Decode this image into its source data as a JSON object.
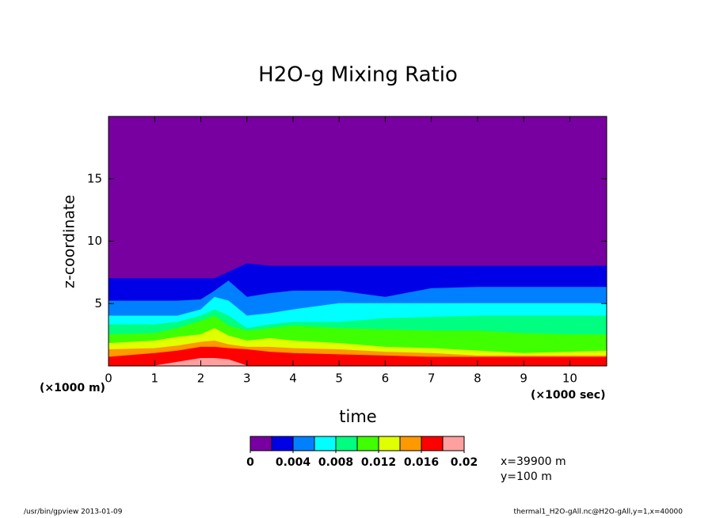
{
  "chart_data": {
    "type": "contour",
    "title": "H2O-g Mixing Ratio",
    "x_label": "time",
    "y_label": "z-coordinate",
    "x_unit": "(×1000 sec)",
    "y_unit": "(×1000 m)",
    "xlim": [
      0,
      10.8
    ],
    "ylim": [
      0,
      20
    ],
    "xticks": [
      0,
      1,
      2,
      3,
      4,
      5,
      6,
      7,
      8,
      9,
      10
    ],
    "yticks": [
      5,
      10,
      15
    ],
    "background_color": "#7800a0",
    "x": [
      0,
      1,
      1.5,
      2,
      2.3,
      2.6,
      3,
      3.5,
      4,
      5,
      6,
      7,
      8,
      9,
      10,
      10.8
    ],
    "series": [
      {
        "color": "#0000e6",
        "values": [
          7,
          7,
          7,
          7,
          7,
          7.5,
          8.2,
          8,
          8,
          8,
          8,
          8,
          8,
          8,
          8,
          8
        ]
      },
      {
        "color": "#0080ff",
        "values": [
          5.2,
          5.2,
          5.2,
          5.3,
          6,
          6.8,
          5.5,
          5.8,
          6,
          6,
          5.5,
          6.2,
          6.3,
          6.3,
          6.3,
          6.3
        ]
      },
      {
        "color": "#00ffff",
        "values": [
          4,
          4,
          4,
          4.5,
          5.5,
          5.2,
          4,
          4.2,
          4.5,
          5,
          5,
          5,
          5,
          5,
          5,
          5
        ]
      },
      {
        "color": "#00ff80",
        "values": [
          3.3,
          3.3,
          3.5,
          4,
          4.5,
          4,
          3,
          3.3,
          3.5,
          3.5,
          3.8,
          3.9,
          4,
          4,
          4,
          4
        ]
      },
      {
        "color": "#40ff00",
        "values": [
          2.5,
          2.6,
          3,
          3.6,
          4,
          3.2,
          2.8,
          3,
          3.2,
          3,
          2.9,
          2.8,
          2.8,
          2.6,
          2.5,
          2.5
        ]
      },
      {
        "color": "#e0ff00",
        "values": [
          1.8,
          2,
          2.3,
          2.5,
          3,
          2.4,
          2,
          2.2,
          2,
          1.8,
          1.5,
          1.4,
          1.2,
          1,
          1.1,
          1.2
        ]
      },
      {
        "color": "#ff9900",
        "values": [
          1.3,
          1.4,
          1.6,
          1.9,
          2,
          1.7,
          1.5,
          1.5,
          1.4,
          1.3,
          1.1,
          1,
          0.8,
          0.8,
          0.8,
          0.8
        ]
      },
      {
        "color": "#ff0000",
        "values": [
          0.7,
          1,
          1.2,
          1.5,
          1.5,
          1.4,
          1.3,
          1.1,
          1,
          0.9,
          0.8,
          0.7,
          0.7,
          0.7,
          0.7,
          0.7
        ]
      },
      {
        "color": "#ffa0a0",
        "values": [
          0,
          0,
          0.3,
          0.6,
          0.6,
          0.5,
          0,
          0,
          0,
          0,
          0,
          0,
          0,
          0,
          0,
          0
        ]
      }
    ],
    "colorbar": {
      "levels": [
        0,
        0.002,
        0.004,
        0.006,
        0.008,
        0.01,
        0.012,
        0.014,
        0.016,
        0.018,
        0.02
      ],
      "colors": [
        "#7800a0",
        "#0000e6",
        "#0080ff",
        "#00ffff",
        "#00ff80",
        "#40ff00",
        "#e0ff00",
        "#ff9900",
        "#ff0000",
        "#ffa0a0"
      ],
      "ticks": [
        0,
        0.004,
        0.008,
        0.012,
        0.016,
        0.02
      ]
    },
    "notes": [
      "x=39900 m",
      "y=100 m"
    ],
    "footer_left": "/usr/bin/gpview  2013-01-09",
    "footer_right": "thermal1_H2O-gAll.nc@H2O-gAll,y=1,x=40000"
  }
}
